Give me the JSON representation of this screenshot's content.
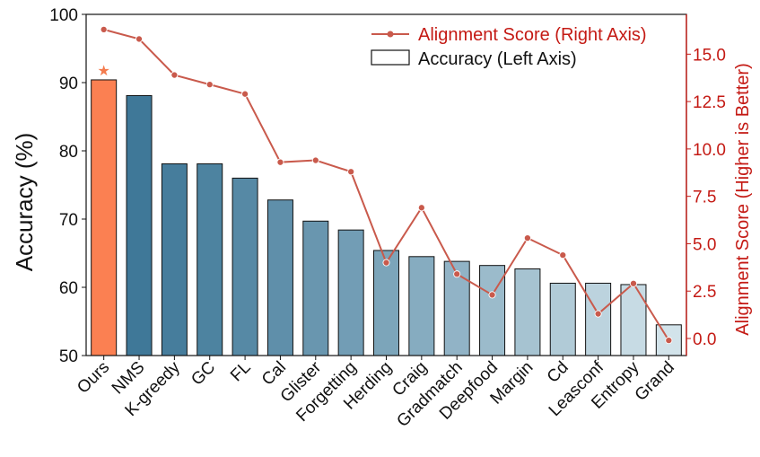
{
  "chart_data": {
    "type": "bar",
    "categories": [
      "Ours",
      "NMS",
      "K-greedy",
      "GC",
      "FL",
      "Cal",
      "Glister",
      "Forgetting",
      "Herding",
      "Craig",
      "Gradmatch",
      "Deepfood",
      "Margin",
      "Cd",
      "Leasconf",
      "Entropy",
      "Grand"
    ],
    "series": [
      {
        "name": "Accuracy (Left Axis)",
        "axis": "left",
        "type": "bar",
        "values": [
          90.4,
          88.1,
          78.1,
          78.1,
          76.0,
          72.8,
          69.7,
          68.4,
          65.4,
          64.5,
          63.8,
          63.2,
          62.7,
          60.6,
          60.6,
          60.4,
          54.5
        ]
      },
      {
        "name": "Alignment Score (Right Axis)",
        "axis": "right",
        "type": "line",
        "values": [
          16.3,
          15.8,
          13.9,
          13.4,
          12.9,
          9.3,
          9.4,
          8.8,
          4.0,
          6.9,
          3.4,
          2.3,
          5.3,
          4.4,
          1.3,
          2.9,
          -0.1
        ]
      }
    ],
    "ylabel": "Accuracy (%)",
    "ylabel_right": "Alignment Score (Higher is Better)",
    "ylim": [
      50,
      100
    ],
    "ylim_right": [
      -0.9,
      17.1
    ],
    "yticks": [
      "50",
      "60",
      "70",
      "80",
      "90",
      "100"
    ],
    "yticks_right": [
      "0.0",
      "2.5",
      "5.0",
      "7.5",
      "10.0",
      "12.5",
      "15.0"
    ],
    "highlight": {
      "category": "Ours",
      "marker": "★",
      "color": "#f47b4d"
    },
    "legend": {
      "position": "top-right",
      "entries": [
        "Alignment Score (Right Axis)",
        "Accuracy (Left Axis)"
      ]
    },
    "colors": {
      "highlight_bar": "#fb8052",
      "line": "#c95a4c",
      "right_axis": "#c41a14",
      "bar_gradient": [
        "#3f7898",
        "#d2e3ea"
      ]
    },
    "grid": false
  }
}
